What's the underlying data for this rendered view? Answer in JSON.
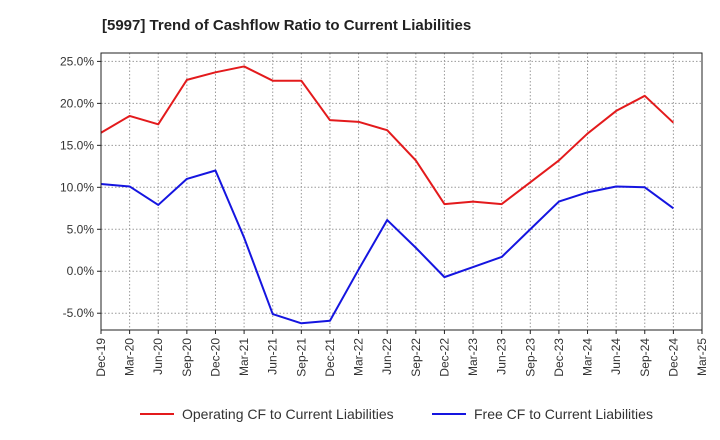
{
  "chart_data": {
    "type": "line",
    "title": "[5997]  Trend of Cashflow Ratio to Current Liabilities",
    "xlabel": "",
    "ylabel": "",
    "categories": [
      "Dec-19",
      "Mar-20",
      "Jun-20",
      "Sep-20",
      "Dec-20",
      "Mar-21",
      "Jun-21",
      "Sep-21",
      "Dec-21",
      "Mar-22",
      "Jun-22",
      "Sep-22",
      "Dec-22",
      "Mar-23",
      "Jun-23",
      "Sep-23",
      "Dec-23",
      "Mar-24",
      "Jun-24",
      "Sep-24",
      "Dec-24",
      "Mar-25"
    ],
    "yticks": [
      "25.0%",
      "20.0%",
      "15.0%",
      "10.0%",
      "5.0%",
      "0.0%",
      "-5.0%"
    ],
    "ylim": [
      -7,
      26
    ],
    "grid": true,
    "legend_position": "bottom",
    "series": [
      {
        "name": "Operating CF to Current Liabilities",
        "color": "#e31a1c",
        "values": [
          16.5,
          18.5,
          17.5,
          22.8,
          23.7,
          24.4,
          22.7,
          22.7,
          18.0,
          17.8,
          16.8,
          13.2,
          8.0,
          8.3,
          8.0,
          10.6,
          13.2,
          16.4,
          19.1,
          20.9,
          17.7,
          null
        ]
      },
      {
        "name": "Free CF to Current Liabilities",
        "color": "#1515e0",
        "values": [
          10.4,
          10.1,
          7.9,
          11.0,
          12.0,
          4.0,
          -5.1,
          -6.2,
          -5.9,
          0.2,
          6.1,
          2.8,
          -0.7,
          0.5,
          1.7,
          5.0,
          8.3,
          9.4,
          10.1,
          10.0,
          7.5,
          null
        ]
      }
    ]
  }
}
